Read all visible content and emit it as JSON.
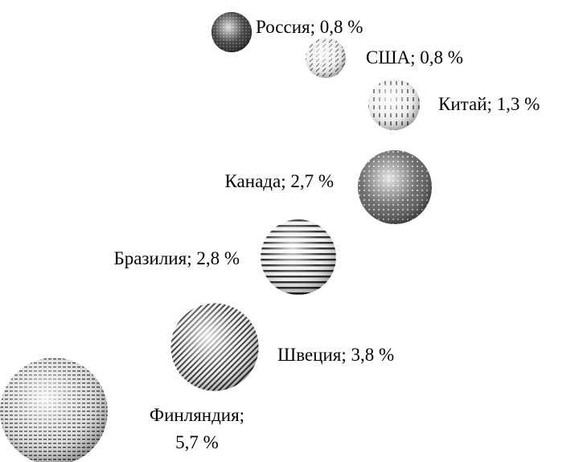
{
  "chart_data": {
    "type": "bubble",
    "categories": [
      "Россия",
      "США",
      "Китай",
      "Канада",
      "Бразилия",
      "Швеция",
      "Финляндия"
    ],
    "values": [
      0.8,
      0.8,
      1.3,
      2.7,
      2.8,
      3.8,
      5.7
    ],
    "value_labels": [
      "Россия; 0,8 %",
      "США; 0,8 %",
      "Китай; 1,3 %",
      "Канада; 2,7 %",
      "Бразилия; 2,8 %",
      "Швеция; 3,8 %",
      "Финляндия; 5,7 %"
    ]
  }
}
